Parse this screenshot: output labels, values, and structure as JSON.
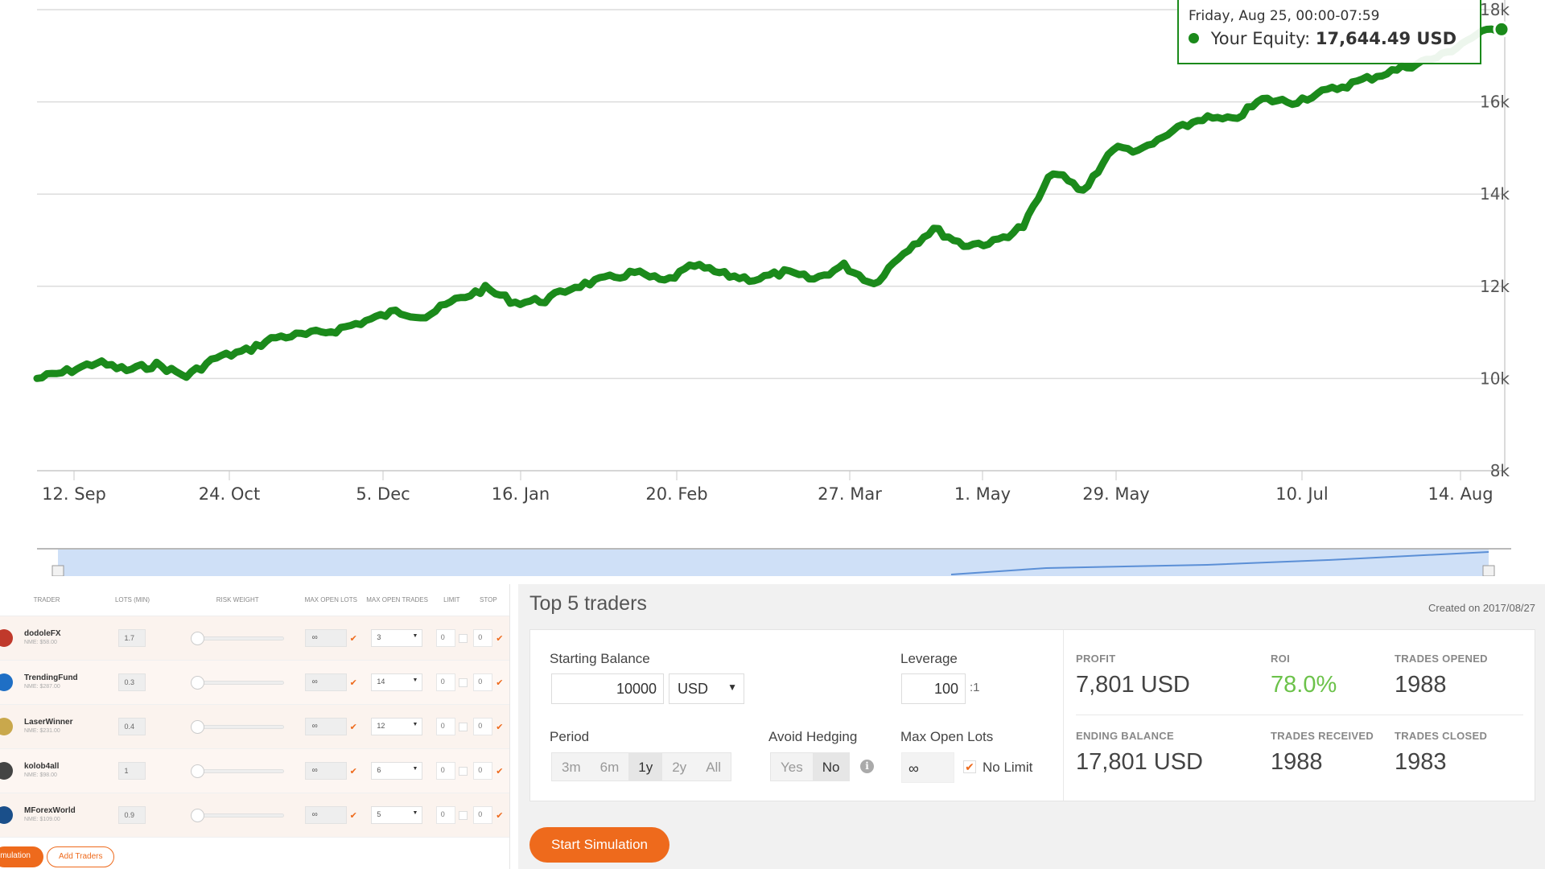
{
  "colors": {
    "equity_line": "#1b8a1b",
    "accent": "#ee6a1c",
    "roi": "#6cc24a",
    "navigator": "#cfe0f7"
  },
  "chart_data": {
    "type": "line",
    "series": [
      {
        "name": "Your Equity",
        "values": [
          10000,
          10150,
          10350,
          10180,
          10300,
          10050,
          10450,
          10600,
          10900,
          10950,
          11050,
          11250,
          11450,
          11350,
          11700,
          11950,
          11650,
          11700,
          12000,
          12150,
          12300,
          12100,
          12450,
          12250,
          12150,
          12300,
          12150,
          12450,
          12050,
          12750,
          13250,
          12900,
          12950,
          13300,
          14500,
          14050,
          15000,
          14950,
          15350,
          15650,
          15600,
          16050,
          16000,
          16200,
          16400,
          16600,
          16800,
          17000,
          17400,
          17644
        ]
      }
    ],
    "x_tick_labels": [
      "12. Sep",
      "24. Oct",
      "5. Dec",
      "16. Jan",
      "20. Feb",
      "27. Mar",
      "1. May",
      "29. May",
      "10. Jul",
      "14. Aug"
    ],
    "y_tick_labels": [
      "8k",
      "10k",
      "12k",
      "14k",
      "16k",
      "18k"
    ],
    "ylim": [
      8000,
      18000
    ],
    "grid": true,
    "tooltip": {
      "date": "Friday, Aug 25, 00:00-07:59",
      "label": "Your Equity:",
      "value": "17,644.49 USD"
    }
  },
  "traders_table": {
    "headers": {
      "trader": "TRADER",
      "lots": "LOTS (MIN)",
      "risk": "RISK WEIGHT",
      "max_lots": "MAX OPEN LOTS",
      "max_trades": "MAX OPEN TRADES",
      "limit": "LIMIT",
      "stop": "STOP"
    },
    "rows": [
      {
        "name": "dodoleFX",
        "sub": "NME: $58.00",
        "lots": "1.7",
        "max_lots": "∞",
        "max_trades": "3",
        "limit": "0",
        "stop": "0",
        "avatar_color": "#c0392b"
      },
      {
        "name": "TrendingFund",
        "sub": "NME: $287.00",
        "lots": "0.3",
        "max_lots": "∞",
        "max_trades": "14",
        "limit": "0",
        "stop": "0",
        "avatar_color": "#1f6fc5"
      },
      {
        "name": "LaserWinner",
        "sub": "NME: $231.00",
        "lots": "0.4",
        "max_lots": "∞",
        "max_trades": "12",
        "limit": "0",
        "stop": "0",
        "avatar_color": "#c9a84c"
      },
      {
        "name": "kolob4all",
        "sub": "NME: $98.00",
        "lots": "1",
        "max_lots": "∞",
        "max_trades": "6",
        "limit": "0",
        "stop": "0",
        "avatar_color": "#444444"
      },
      {
        "name": "MForexWorld",
        "sub": "NME: $109.00",
        "lots": "0.9",
        "max_lots": "∞",
        "max_trades": "5",
        "limit": "0",
        "stop": "0",
        "avatar_color": "#1a4f8a"
      }
    ],
    "buttons": {
      "simulation": "mulation",
      "add_traders": "Add Traders"
    }
  },
  "simulation": {
    "title": "Top 5 traders",
    "created": "Created on 2017/08/27",
    "starting_balance_label": "Starting Balance",
    "starting_balance": "10000",
    "currency": "USD",
    "leverage_label": "Leverage",
    "leverage": "100",
    "leverage_suffix": ":1",
    "period_label": "Period",
    "periods": [
      "3m",
      "6m",
      "1y",
      "2y",
      "All"
    ],
    "period_selected": "1y",
    "hedging_label": "Avoid Hedging",
    "hedging_yes": "Yes",
    "hedging_no": "No",
    "max_lots_label": "Max Open Lots",
    "max_lots": "∞",
    "no_limit": "No Limit",
    "stats": {
      "profit_label": "PROFIT",
      "profit": "7,801 USD",
      "roi_label": "ROI",
      "roi": "78.0%",
      "opened_label": "TRADES OPENED",
      "opened": "1988",
      "ending_label": "ENDING BALANCE",
      "ending": "17,801 USD",
      "received_label": "TRADES RECEIVED",
      "received": "1988",
      "closed_label": "TRADES CLOSED",
      "closed": "1983"
    },
    "start_button": "Start Simulation"
  }
}
